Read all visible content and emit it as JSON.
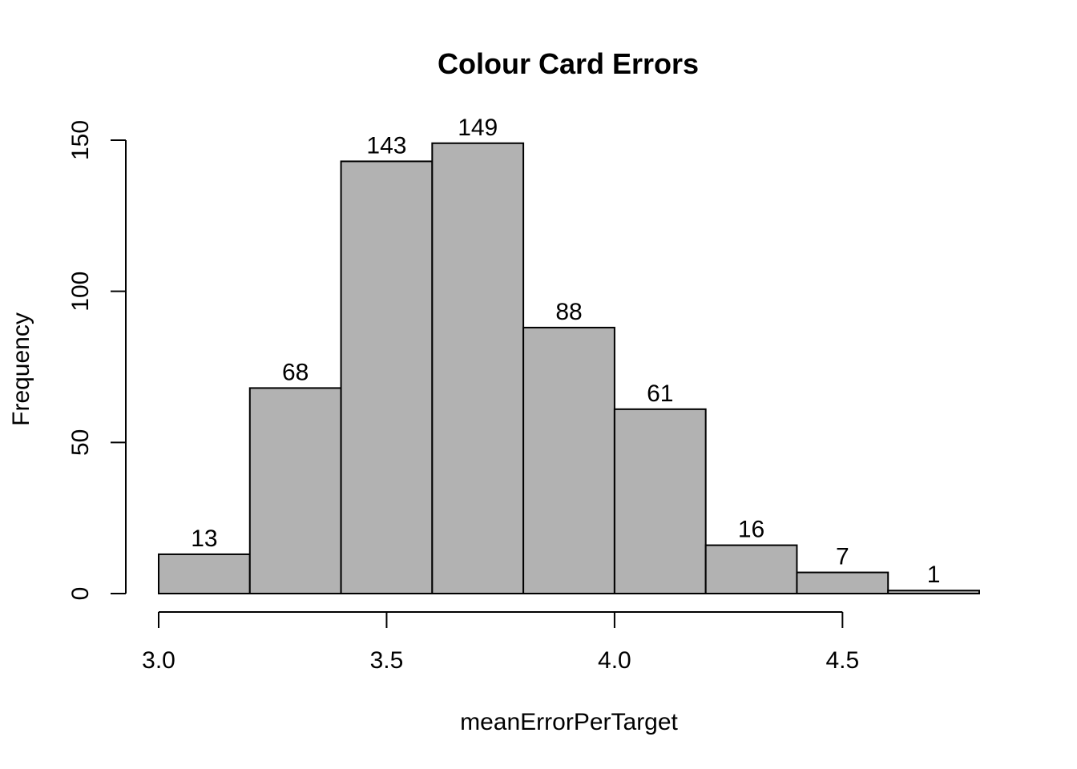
{
  "chart_data": {
    "type": "bar",
    "subtype": "histogram",
    "title": "Colour Card Errors",
    "xlabel": "meanErrorPerTarget",
    "ylabel": "Frequency",
    "bins": [
      {
        "start": 3.0,
        "end": 3.2,
        "count": 13
      },
      {
        "start": 3.2,
        "end": 3.4,
        "count": 68
      },
      {
        "start": 3.4,
        "end": 3.6,
        "count": 143
      },
      {
        "start": 3.6,
        "end": 3.8,
        "count": 149
      },
      {
        "start": 3.8,
        "end": 4.0,
        "count": 88
      },
      {
        "start": 4.0,
        "end": 4.2,
        "count": 61
      },
      {
        "start": 4.2,
        "end": 4.4,
        "count": 16
      },
      {
        "start": 4.4,
        "end": 4.6,
        "count": 7
      },
      {
        "start": 4.6,
        "end": 4.8,
        "count": 1
      }
    ],
    "xlim": [
      3.0,
      4.8
    ],
    "ylim": [
      0,
      150
    ],
    "x_ticks": [
      "3.0",
      "3.5",
      "4.0",
      "4.5"
    ],
    "y_ticks": [
      "0",
      "50",
      "100",
      "150"
    ],
    "bar_labels": [
      "13",
      "68",
      "143",
      "149",
      "88",
      "61",
      "16",
      "7",
      "1"
    ],
    "colors": {
      "bar_fill": "#b2b2b2",
      "bar_stroke": "#000000"
    },
    "grid": false,
    "legend": "none"
  }
}
